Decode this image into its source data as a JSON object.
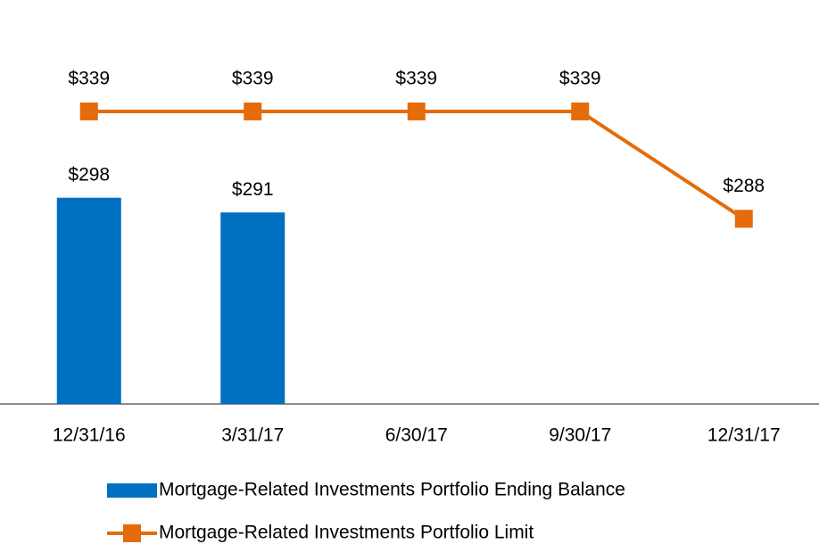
{
  "chart_data": {
    "type": "combo",
    "categories": [
      "12/31/16",
      "3/31/17",
      "6/30/17",
      "9/30/17",
      "12/31/17"
    ],
    "series": [
      {
        "name": "Mortgage-Related Investments Portfolio Ending Balance",
        "type": "bar",
        "color": "#0070c0",
        "values": [
          298,
          291,
          null,
          null,
          null
        ],
        "value_labels": [
          "$298",
          "$291",
          null,
          null,
          null
        ]
      },
      {
        "name": "Mortgage-Related Investments Portfolio Limit",
        "type": "line",
        "color": "#e46c0a",
        "values": [
          339,
          339,
          339,
          339,
          288
        ],
        "value_labels": [
          "$339",
          "$339",
          "$339",
          "$339",
          "$288"
        ]
      }
    ],
    "ylim": [
      200,
      350
    ]
  }
}
